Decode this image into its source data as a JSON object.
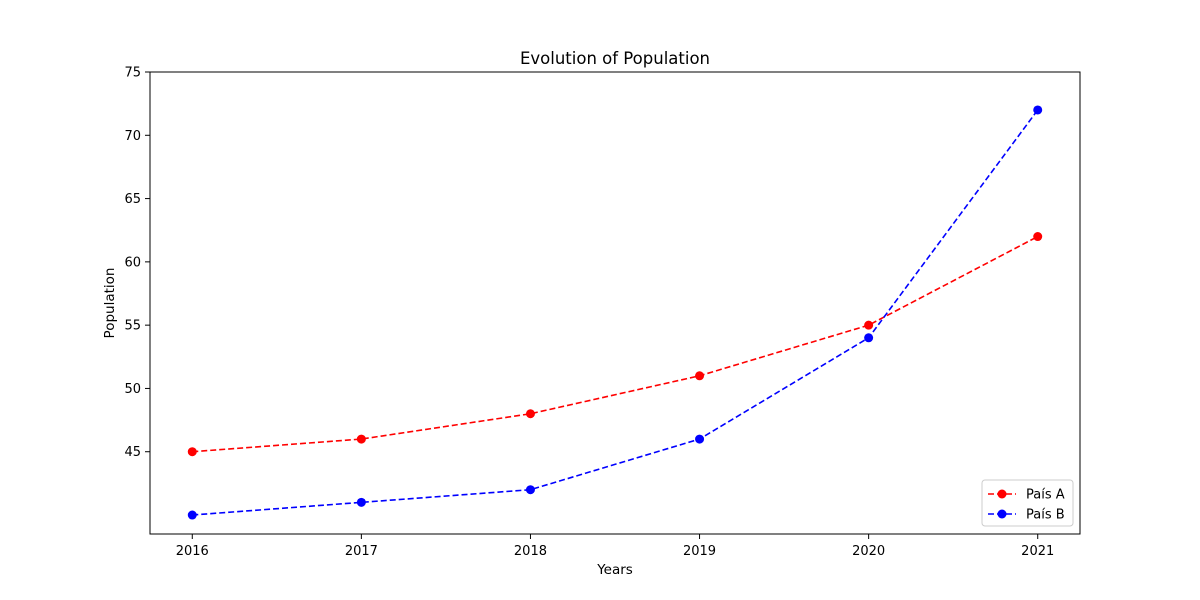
{
  "chart_data": {
    "type": "line",
    "title": "Evolution of Population",
    "xlabel": "Years",
    "ylabel": "Population",
    "x": [
      2016,
      2017,
      2018,
      2019,
      2020,
      2021
    ],
    "xticks": [
      "2016",
      "2017",
      "2018",
      "2019",
      "2020",
      "2021"
    ],
    "yticks": [
      "45",
      "50",
      "55",
      "60",
      "65",
      "70",
      "75"
    ],
    "ytick_values": [
      45,
      50,
      55,
      60,
      65,
      70,
      75
    ],
    "ylim": [
      38.5,
      75
    ],
    "xlim": [
      2015.75,
      2021.25
    ],
    "grid": false,
    "legend_position": "lower-right",
    "line_style": "dashed",
    "marker": "circle",
    "series": [
      {
        "name": "País A",
        "color": "#ff0000",
        "values": [
          45,
          46,
          48,
          51,
          55,
          62
        ]
      },
      {
        "name": "País B",
        "color": "#0000ff",
        "values": [
          40,
          41,
          42,
          46,
          54,
          72
        ]
      }
    ]
  }
}
